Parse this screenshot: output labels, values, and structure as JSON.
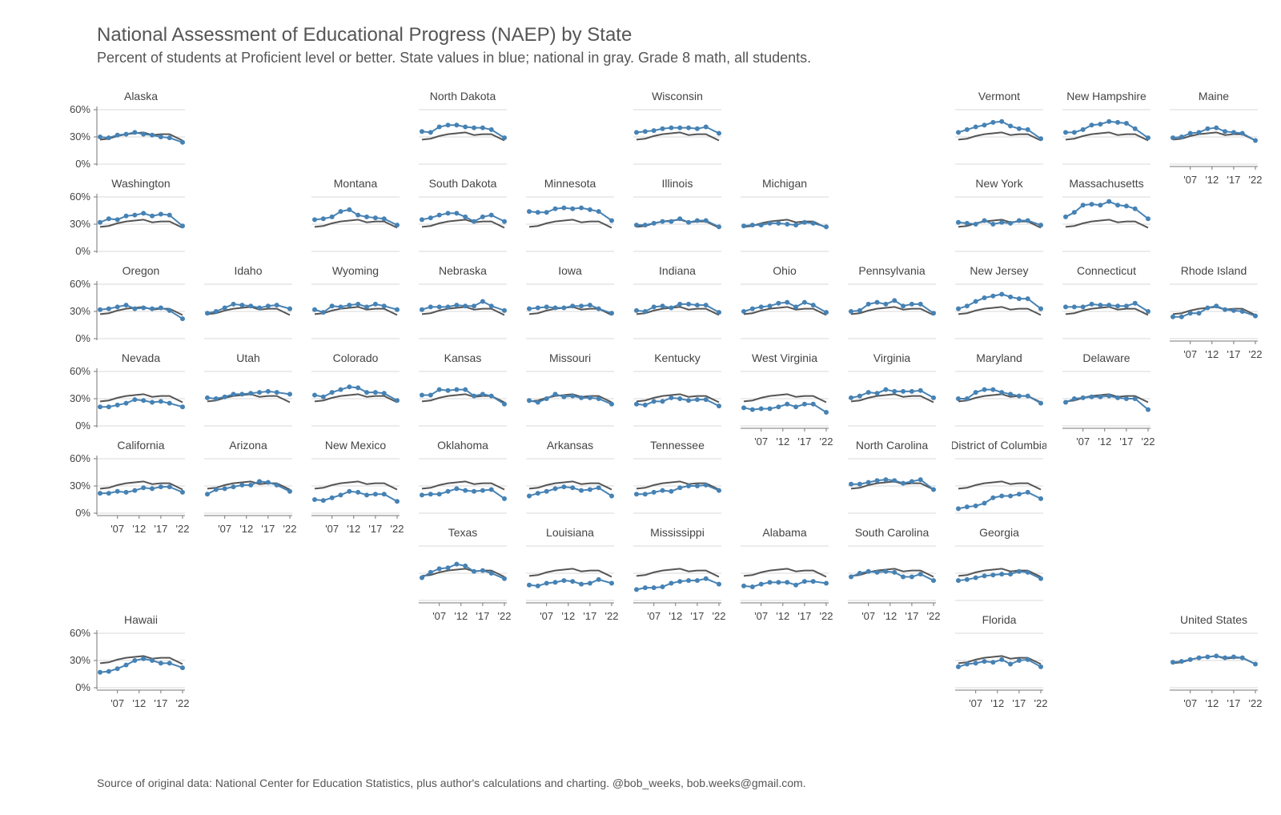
{
  "header": {
    "title": "National Assessment of Educational Progress (NAEP) by State",
    "subtitle": "Percent of students at Proficient level or better. State values in blue; national in gray. Grade 8 math, all students."
  },
  "footer": {
    "source": "Source of original data: National Center for Education Statistics, plus author's calculations and charting. @bob_weeks, bob.weeks@gmail.com."
  },
  "chart_data": {
    "type": "line",
    "layout": "small multiples arranged as a tile map of U.S. states",
    "grid": true,
    "colors": {
      "state": "#4682b4",
      "national": "#555555",
      "grid": "#d9d9d9"
    },
    "ylim": [
      0,
      60
    ],
    "y_ticks": [
      0,
      30,
      60
    ],
    "y_tick_labels": [
      "0%",
      "30%",
      "60%"
    ],
    "x_ticks": [
      2007,
      2012,
      2017,
      2022
    ],
    "x_tick_labels": [
      "'07",
      "'12",
      "'17",
      "'22"
    ],
    "years": [
      2003,
      2005,
      2007,
      2009,
      2011,
      2013,
      2015,
      2017,
      2019,
      2022
    ],
    "national": [
      27,
      28,
      31,
      33,
      34,
      35,
      32,
      33,
      33,
      26
    ],
    "states": [
      {
        "name": "Alaska",
        "row": 0,
        "col": 0,
        "values": [
          30,
          29,
          32,
          33,
          35,
          33,
          32,
          30,
          29,
          24
        ]
      },
      {
        "name": "North Dakota",
        "row": 0,
        "col": 3,
        "values": [
          36,
          35,
          41,
          43,
          43,
          41,
          40,
          40,
          38,
          29
        ]
      },
      {
        "name": "Wisconsin",
        "row": 0,
        "col": 5,
        "values": [
          35,
          36,
          37,
          39,
          40,
          40,
          40,
          39,
          41,
          34
        ]
      },
      {
        "name": "Vermont",
        "row": 0,
        "col": 8,
        "values": [
          35,
          38,
          41,
          43,
          46,
          47,
          42,
          39,
          38,
          28
        ]
      },
      {
        "name": "New Hampshire",
        "row": 0,
        "col": 9,
        "values": [
          35,
          35,
          38,
          43,
          44,
          47,
          46,
          45,
          39,
          29
        ]
      },
      {
        "name": "Maine",
        "row": 0,
        "col": 10,
        "values": [
          29,
          30,
          34,
          35,
          39,
          40,
          36,
          35,
          34,
          26
        ]
      },
      {
        "name": "Washington",
        "row": 1,
        "col": 0,
        "values": [
          32,
          36,
          35,
          39,
          40,
          42,
          39,
          41,
          40,
          28
        ]
      },
      {
        "name": "Montana",
        "row": 1,
        "col": 2,
        "values": [
          35,
          36,
          38,
          44,
          46,
          40,
          38,
          37,
          36,
          29
        ]
      },
      {
        "name": "South Dakota",
        "row": 1,
        "col": 3,
        "values": [
          35,
          37,
          40,
          42,
          42,
          38,
          33,
          38,
          40,
          33
        ]
      },
      {
        "name": "Minnesota",
        "row": 1,
        "col": 4,
        "values": [
          44,
          43,
          43,
          47,
          48,
          47,
          48,
          46,
          44,
          34
        ]
      },
      {
        "name": "Illinois",
        "row": 1,
        "col": 5,
        "values": [
          29,
          29,
          31,
          33,
          33,
          36,
          32,
          34,
          34,
          27
        ]
      },
      {
        "name": "Michigan",
        "row": 1,
        "col": 6,
        "values": [
          28,
          29,
          29,
          31,
          31,
          30,
          29,
          32,
          31,
          27
        ]
      },
      {
        "name": "New York",
        "row": 1,
        "col": 8,
        "values": [
          32,
          31,
          30,
          34,
          30,
          32,
          31,
          34,
          34,
          29
        ]
      },
      {
        "name": "Massachusetts",
        "row": 1,
        "col": 9,
        "values": [
          38,
          43,
          51,
          52,
          51,
          55,
          51,
          50,
          47,
          36
        ]
      },
      {
        "name": "Oregon",
        "row": 2,
        "col": 0,
        "values": [
          32,
          33,
          35,
          37,
          33,
          34,
          33,
          34,
          31,
          22
        ]
      },
      {
        "name": "Idaho",
        "row": 2,
        "col": 1,
        "values": [
          28,
          30,
          34,
          38,
          37,
          36,
          34,
          36,
          37,
          33
        ]
      },
      {
        "name": "Wyoming",
        "row": 2,
        "col": 2,
        "values": [
          32,
          29,
          36,
          35,
          37,
          38,
          35,
          38,
          36,
          32
        ]
      },
      {
        "name": "Nebraska",
        "row": 2,
        "col": 3,
        "values": [
          32,
          35,
          35,
          35,
          37,
          36,
          36,
          41,
          36,
          31
        ]
      },
      {
        "name": "Iowa",
        "row": 2,
        "col": 4,
        "values": [
          33,
          34,
          35,
          34,
          34,
          36,
          36,
          37,
          33,
          28
        ]
      },
      {
        "name": "Indiana",
        "row": 2,
        "col": 5,
        "values": [
          31,
          30,
          35,
          36,
          34,
          38,
          38,
          37,
          37,
          29
        ]
      },
      {
        "name": "Ohio",
        "row": 2,
        "col": 6,
        "values": [
          30,
          33,
          35,
          36,
          39,
          40,
          35,
          40,
          37,
          29
        ]
      },
      {
        "name": "Pennsylvania",
        "row": 2,
        "col": 7,
        "values": [
          30,
          31,
          38,
          40,
          38,
          42,
          36,
          38,
          38,
          28
        ]
      },
      {
        "name": "New Jersey",
        "row": 2,
        "col": 8,
        "values": [
          33,
          36,
          41,
          45,
          47,
          49,
          46,
          44,
          44,
          33
        ]
      },
      {
        "name": "Connecticut",
        "row": 2,
        "col": 9,
        "values": [
          35,
          35,
          35,
          38,
          37,
          37,
          36,
          36,
          39,
          30
        ]
      },
      {
        "name": "Rhode Island",
        "row": 2,
        "col": 10,
        "values": [
          24,
          24,
          28,
          28,
          34,
          36,
          32,
          31,
          30,
          25
        ]
      },
      {
        "name": "Nevada",
        "row": 3,
        "col": 0,
        "values": [
          21,
          21,
          23,
          25,
          29,
          28,
          26,
          27,
          25,
          21
        ]
      },
      {
        "name": "Utah",
        "row": 3,
        "col": 1,
        "values": [
          31,
          30,
          32,
          35,
          35,
          36,
          37,
          38,
          37,
          35
        ]
      },
      {
        "name": "Colorado",
        "row": 3,
        "col": 2,
        "values": [
          34,
          32,
          37,
          40,
          43,
          42,
          37,
          37,
          36,
          28
        ]
      },
      {
        "name": "Kansas",
        "row": 3,
        "col": 3,
        "values": [
          34,
          34,
          40,
          39,
          40,
          40,
          33,
          35,
          33,
          24
        ]
      },
      {
        "name": "Missouri",
        "row": 3,
        "col": 4,
        "values": [
          28,
          26,
          30,
          35,
          32,
          33,
          31,
          31,
          30,
          24
        ]
      },
      {
        "name": "Kentucky",
        "row": 3,
        "col": 5,
        "values": [
          24,
          23,
          27,
          27,
          31,
          30,
          28,
          29,
          29,
          22
        ]
      },
      {
        "name": "West Virginia",
        "row": 3,
        "col": 6,
        "values": [
          20,
          18,
          19,
          19,
          21,
          24,
          21,
          24,
          24,
          15
        ]
      },
      {
        "name": "Virginia",
        "row": 3,
        "col": 7,
        "values": [
          31,
          33,
          37,
          36,
          40,
          38,
          38,
          38,
          39,
          31
        ]
      },
      {
        "name": "Maryland",
        "row": 3,
        "col": 8,
        "values": [
          30,
          30,
          37,
          40,
          40,
          37,
          35,
          33,
          33,
          25
        ]
      },
      {
        "name": "Delaware",
        "row": 3,
        "col": 9,
        "values": [
          26,
          30,
          31,
          32,
          32,
          33,
          31,
          30,
          30,
          18
        ]
      },
      {
        "name": "California",
        "row": 4,
        "col": 0,
        "values": [
          22,
          22,
          24,
          23,
          25,
          28,
          27,
          29,
          29,
          23
        ]
      },
      {
        "name": "Arizona",
        "row": 4,
        "col": 1,
        "values": [
          21,
          26,
          27,
          29,
          31,
          31,
          35,
          34,
          31,
          24
        ]
      },
      {
        "name": "New Mexico",
        "row": 4,
        "col": 2,
        "values": [
          15,
          14,
          17,
          20,
          24,
          23,
          20,
          21,
          21,
          13
        ]
      },
      {
        "name": "Oklahoma",
        "row": 4,
        "col": 3,
        "values": [
          20,
          21,
          21,
          24,
          27,
          25,
          24,
          25,
          26,
          16
        ]
      },
      {
        "name": "Arkansas",
        "row": 4,
        "col": 4,
        "values": [
          19,
          22,
          24,
          27,
          29,
          28,
          25,
          26,
          28,
          19
        ]
      },
      {
        "name": "Tennessee",
        "row": 4,
        "col": 5,
        "values": [
          21,
          21,
          23,
          25,
          24,
          28,
          30,
          30,
          31,
          25
        ]
      },
      {
        "name": "North Carolina",
        "row": 4,
        "col": 7,
        "values": [
          32,
          32,
          34,
          36,
          37,
          36,
          33,
          35,
          37,
          26
        ]
      },
      {
        "name": "District of Columbia",
        "row": 4,
        "col": 8,
        "values": [
          5,
          7,
          8,
          11,
          17,
          19,
          19,
          21,
          23,
          16
        ]
      },
      {
        "name": "Texas",
        "row": 5,
        "col": 3,
        "values": [
          25,
          31,
          35,
          36,
          40,
          38,
          32,
          33,
          30,
          24
        ]
      },
      {
        "name": "Louisiana",
        "row": 5,
        "col": 4,
        "values": [
          17,
          16,
          19,
          20,
          22,
          21,
          18,
          19,
          23,
          19
        ]
      },
      {
        "name": "Mississippi",
        "row": 5,
        "col": 5,
        "values": [
          12,
          14,
          14,
          15,
          19,
          21,
          22,
          22,
          24,
          18
        ]
      },
      {
        "name": "Alabama",
        "row": 5,
        "col": 6,
        "values": [
          16,
          15,
          18,
          20,
          20,
          20,
          17,
          21,
          21,
          19
        ]
      },
      {
        "name": "South Carolina",
        "row": 5,
        "col": 7,
        "values": [
          26,
          30,
          32,
          31,
          32,
          31,
          26,
          26,
          29,
          22
        ]
      },
      {
        "name": "Georgia",
        "row": 5,
        "col": 8,
        "values": [
          22,
          23,
          25,
          27,
          28,
          29,
          29,
          32,
          31,
          24
        ]
      },
      {
        "name": "Hawaii",
        "row": 6,
        "col": 0,
        "values": [
          17,
          18,
          21,
          25,
          30,
          32,
          30,
          27,
          27,
          22
        ]
      },
      {
        "name": "Florida",
        "row": 6,
        "col": 8,
        "values": [
          23,
          26,
          27,
          29,
          28,
          31,
          26,
          30,
          31,
          23
        ]
      },
      {
        "name": "United States",
        "row": 6,
        "col": 10,
        "values": [
          28,
          29,
          31,
          33,
          34,
          35,
          33,
          34,
          33,
          26
        ]
      }
    ]
  }
}
